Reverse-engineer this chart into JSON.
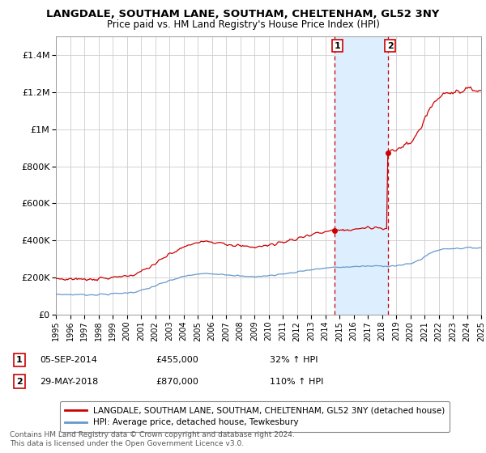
{
  "title": "LANGDALE, SOUTHAM LANE, SOUTHAM, CHELTENHAM, GL52 3NY",
  "subtitle": "Price paid vs. HM Land Registry's House Price Index (HPI)",
  "legend_line1": "LANGDALE, SOUTHAM LANE, SOUTHAM, CHELTENHAM, GL52 3NY (detached house)",
  "legend_line2": "HPI: Average price, detached house, Tewkesbury",
  "annotation1_label": "1",
  "annotation1_date": "05-SEP-2014",
  "annotation1_price": "£455,000",
  "annotation1_hpi": "32% ↑ HPI",
  "annotation1_year": 2014.67,
  "annotation1_value": 455000,
  "annotation2_label": "2",
  "annotation2_date": "29-MAY-2018",
  "annotation2_price": "£870,000",
  "annotation2_hpi": "110% ↑ HPI",
  "annotation2_year": 2018.41,
  "annotation2_value": 870000,
  "red_line_color": "#cc0000",
  "blue_line_color": "#6699cc",
  "shaded_color": "#ddeeff",
  "annotation_box_color": "#cc0000",
  "grid_color": "#cccccc",
  "background_color": "#ffffff",
  "ylim": [
    0,
    1500000
  ],
  "xlim_start": 1995,
  "xlim_end": 2025,
  "ytick_labels": [
    "£0",
    "£200K",
    "£400K",
    "£600K",
    "£800K",
    "£1M",
    "£1.2M",
    "£1.4M"
  ],
  "ytick_values": [
    0,
    200000,
    400000,
    600000,
    800000,
    1000000,
    1200000,
    1400000
  ],
  "footer_line1": "Contains HM Land Registry data © Crown copyright and database right 2024.",
  "footer_line2": "This data is licensed under the Open Government Licence v3.0."
}
